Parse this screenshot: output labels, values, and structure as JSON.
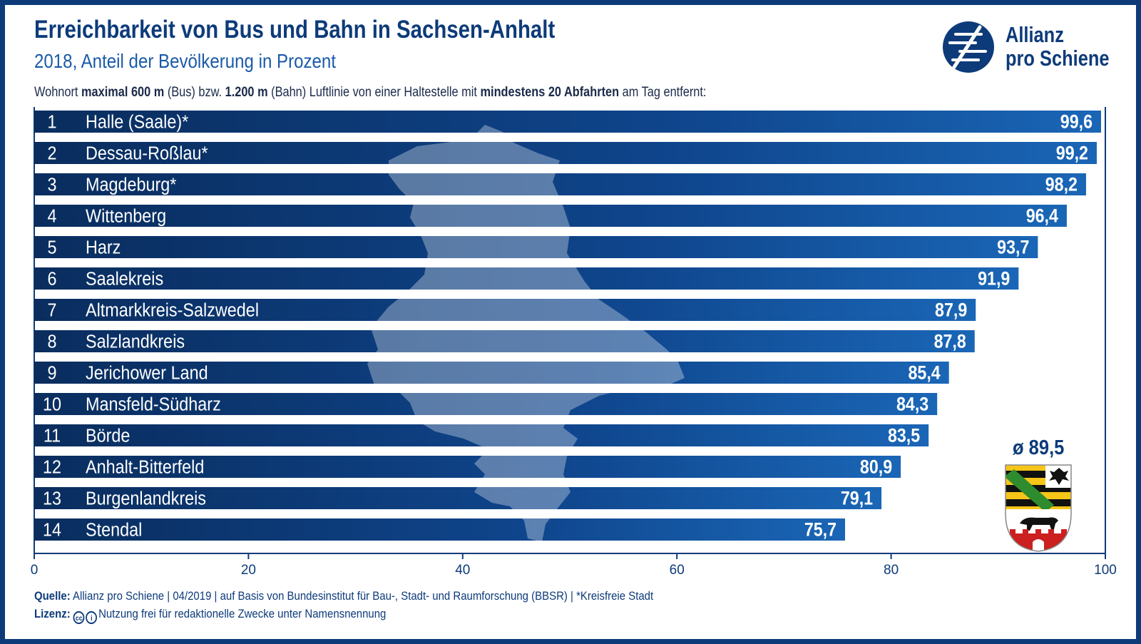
{
  "title": "Erreichbarkeit von Bus und Bahn in Sachsen-Anhalt",
  "subtitle": "2018, Anteil der Bevölkerung in Prozent",
  "intro": {
    "p1": "Wohnort ",
    "b1": "maximal 600 m",
    "p2": " (Bus) bzw. ",
    "b2": "1.200 m",
    "p3": " (Bahn) Luftlinie von einer Haltestelle mit ",
    "b3": "mindestens 20 Abfahrten",
    "p4": " am Tag entfernt:"
  },
  "logo": {
    "line1": "Allianz",
    "line2": "pro Schiene"
  },
  "average_label": "ø 89,5",
  "footer": {
    "source_label": "Quelle:",
    "source_text": "Allianz pro Schiene | 04/2019 | auf Basis von Bundesinstitut für Bau-, Stadt- und Raumforschung (BBSR) | *Kreisfreie Stadt",
    "license_label": "Lizenz:",
    "license_text": "Nutzung frei für redaktionelle Zwecke unter Namensnennung"
  },
  "colors": {
    "dark": "#0d3b7a",
    "bar_start": "#0b3063",
    "bar_end": "#1a64b4"
  },
  "chart_data": {
    "type": "bar",
    "orientation": "horizontal",
    "title": "Erreichbarkeit von Bus und Bahn in Sachsen-Anhalt",
    "xlim": [
      0,
      100
    ],
    "xticks": [
      0,
      20,
      40,
      60,
      80,
      100
    ],
    "xtick_labels": [
      "0",
      "20",
      "40",
      "60",
      "80",
      "100"
    ],
    "ranks": [
      "1",
      "2",
      "3",
      "4",
      "5",
      "6",
      "7",
      "8",
      "9",
      "10",
      "11",
      "12",
      "13",
      "14"
    ],
    "categories": [
      "Halle (Saale)*",
      "Dessau-Roßlau*",
      "Magdeburg*",
      "Wittenberg",
      "Harz",
      "Saalekreis",
      "Altmarkkreis-Salzwedel",
      "Salzlandkreis",
      "Jerichower Land",
      "Mansfeld-Südharz",
      "Börde",
      "Anhalt-Bitterfeld",
      "Burgenlandkreis",
      "Stendal"
    ],
    "values": [
      99.6,
      99.2,
      98.2,
      96.4,
      93.7,
      91.9,
      87.9,
      87.8,
      85.4,
      84.3,
      83.5,
      80.9,
      79.1,
      75.7
    ],
    "value_labels": [
      "99,6",
      "99,2",
      "98,2",
      "96,4",
      "93,7",
      "91,9",
      "87,9",
      "87,8",
      "85,4",
      "84,3",
      "83,5",
      "80,9",
      "79,1",
      "75,7"
    ],
    "average": 89.5,
    "grid": false
  }
}
